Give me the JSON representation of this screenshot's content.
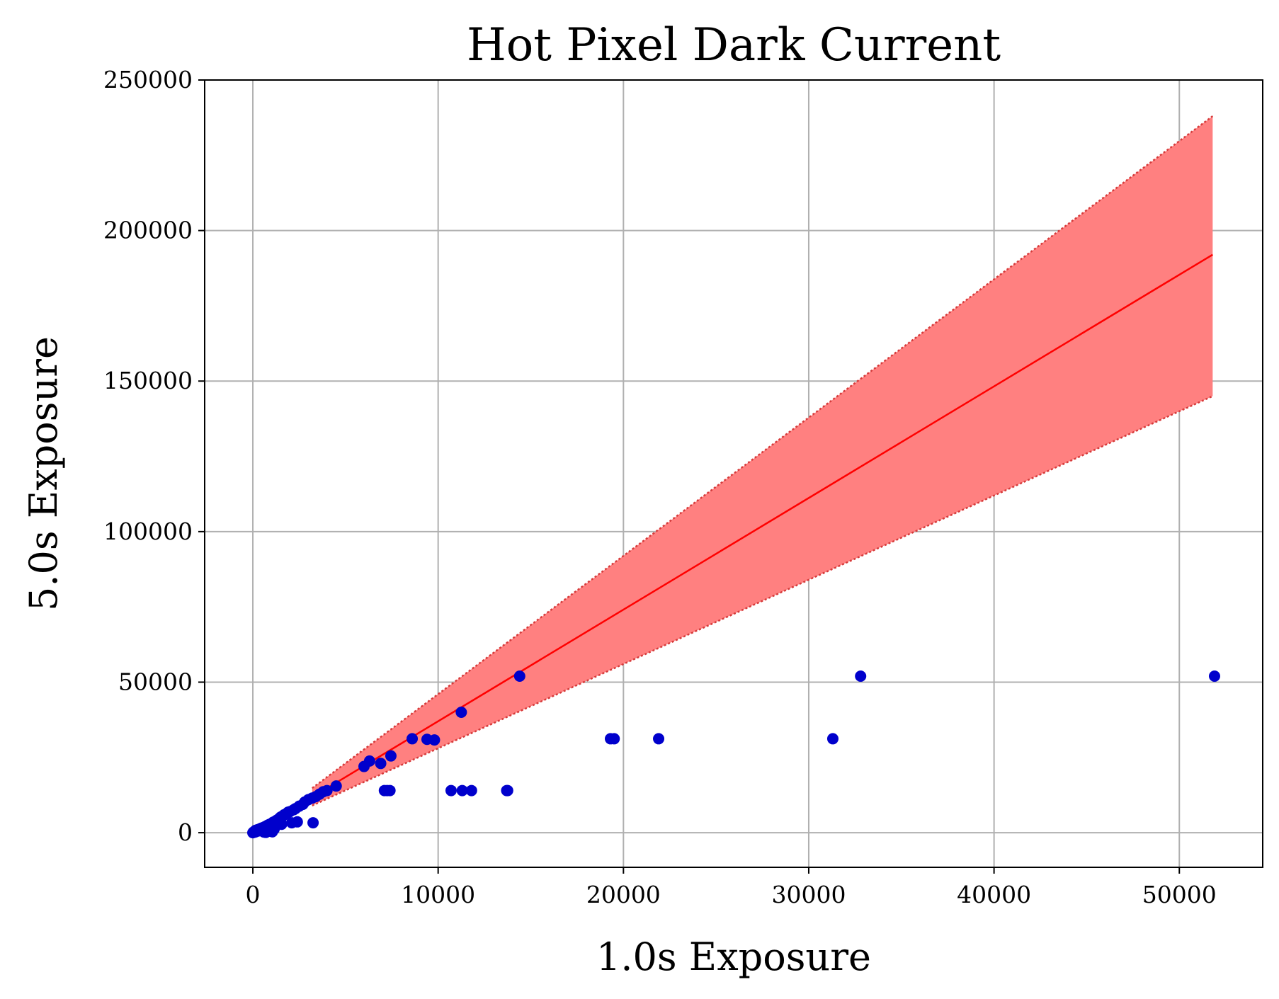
{
  "chart_data": {
    "type": "scatter",
    "title": "Hot Pixel Dark Current",
    "xlabel": "1.0s Exposure",
    "ylabel": "5.0s Exposure",
    "xlim": [
      -2600,
      54500
    ],
    "ylim": [
      -11500,
      250000
    ],
    "xticks": [
      0,
      10000,
      20000,
      30000,
      40000,
      50000
    ],
    "xtick_labels": [
      "0",
      "10000",
      "20000",
      "30000",
      "40000",
      "50000"
    ],
    "yticks": [
      0,
      50000,
      100000,
      150000,
      200000,
      250000
    ],
    "ytick_labels": [
      "0",
      "50000",
      "100000",
      "150000",
      "200000",
      "250000"
    ],
    "grid": true,
    "colors": {
      "points": "#0000cc",
      "fit_line": "#ff0000",
      "band_fill": "#ff8080",
      "band_edge": "#d63a3a",
      "grid": "#b0b0b0"
    },
    "fit_line": {
      "x": [
        3200,
        51800
      ],
      "y": [
        11800,
        192000
      ]
    },
    "confidence_band": {
      "x": [
        3200,
        51800
      ],
      "upper": [
        14800,
        238000
      ],
      "lower": [
        9000,
        145000
      ]
    },
    "points": [
      [
        0,
        0
      ],
      [
        50,
        300
      ],
      [
        100,
        500
      ],
      [
        120,
        200
      ],
      [
        150,
        800
      ],
      [
        200,
        400
      ],
      [
        250,
        1000
      ],
      [
        300,
        600
      ],
      [
        350,
        1200
      ],
      [
        400,
        800
      ],
      [
        450,
        1500
      ],
      [
        500,
        1000
      ],
      [
        550,
        1700
      ],
      [
        600,
        200
      ],
      [
        650,
        2000
      ],
      [
        700,
        100
      ],
      [
        750,
        2200
      ],
      [
        800,
        2500
      ],
      [
        850,
        500
      ],
      [
        900,
        2800
      ],
      [
        950,
        1000
      ],
      [
        1000,
        3000
      ],
      [
        1050,
        300
      ],
      [
        1100,
        3500
      ],
      [
        1150,
        1200
      ],
      [
        1200,
        3800
      ],
      [
        1300,
        4200
      ],
      [
        1400,
        4600
      ],
      [
        1500,
        5200
      ],
      [
        1550,
        2800
      ],
      [
        1600,
        5500
      ],
      [
        1700,
        6000
      ],
      [
        1800,
        6200
      ],
      [
        1900,
        6800
      ],
      [
        2000,
        7000
      ],
      [
        2100,
        3300
      ],
      [
        2200,
        7600
      ],
      [
        2300,
        8000
      ],
      [
        2400,
        3600
      ],
      [
        2500,
        8800
      ],
      [
        2700,
        9400
      ],
      [
        2800,
        10200
      ],
      [
        3000,
        11000
      ],
      [
        3200,
        11500
      ],
      [
        3250,
        3300
      ],
      [
        3400,
        12000
      ],
      [
        3600,
        12800
      ],
      [
        3800,
        13600
      ],
      [
        4000,
        14000
      ],
      [
        4500,
        15500
      ],
      [
        6000,
        22000
      ],
      [
        6300,
        23800
      ],
      [
        6900,
        23000
      ],
      [
        7100,
        14000
      ],
      [
        7250,
        14000
      ],
      [
        7400,
        14000
      ],
      [
        7450,
        25500
      ],
      [
        8600,
        31200
      ],
      [
        9400,
        31000
      ],
      [
        9800,
        30800
      ],
      [
        10700,
        14000
      ],
      [
        11250,
        40000
      ],
      [
        11300,
        14000
      ],
      [
        11800,
        14000
      ],
      [
        13700,
        14000
      ],
      [
        13750,
        14000
      ],
      [
        14400,
        52000
      ],
      [
        19300,
        31200
      ],
      [
        19500,
        31200
      ],
      [
        21900,
        31200
      ],
      [
        31300,
        31200
      ],
      [
        32800,
        52000
      ],
      [
        51900,
        52000
      ]
    ]
  }
}
